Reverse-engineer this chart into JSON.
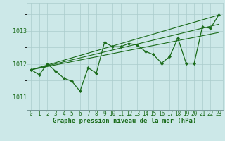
{
  "xlabel": "Graphe pression niveau de la mer (hPa)",
  "hours": [
    0,
    1,
    2,
    3,
    4,
    5,
    6,
    7,
    8,
    9,
    10,
    11,
    12,
    13,
    14,
    15,
    16,
    17,
    18,
    19,
    20,
    21,
    22,
    23
  ],
  "pressure": [
    1011.82,
    1011.67,
    1012.0,
    1011.78,
    1011.57,
    1011.47,
    1011.17,
    1011.88,
    1011.72,
    1012.65,
    1012.52,
    1012.52,
    1012.62,
    1012.57,
    1012.38,
    1012.28,
    1012.02,
    1012.22,
    1012.78,
    1012.02,
    1012.02,
    1013.12,
    1013.08,
    1013.48
  ],
  "trend_lines": [
    [
      0,
      1011.82,
      23,
      1013.48
    ],
    [
      0,
      1011.82,
      23,
      1013.2
    ],
    [
      0,
      1011.82,
      23,
      1012.95
    ]
  ],
  "ylim": [
    1010.6,
    1013.85
  ],
  "xlim": [
    -0.5,
    23.5
  ],
  "yticks": [
    1011,
    1012,
    1013
  ],
  "bg_color": "#cce8e8",
  "grid_color": "#aacccc",
  "line_color": "#1a6b1a",
  "text_color": "#1a6b1a",
  "font_size_label": 6.5,
  "font_size_tick": 6.0
}
